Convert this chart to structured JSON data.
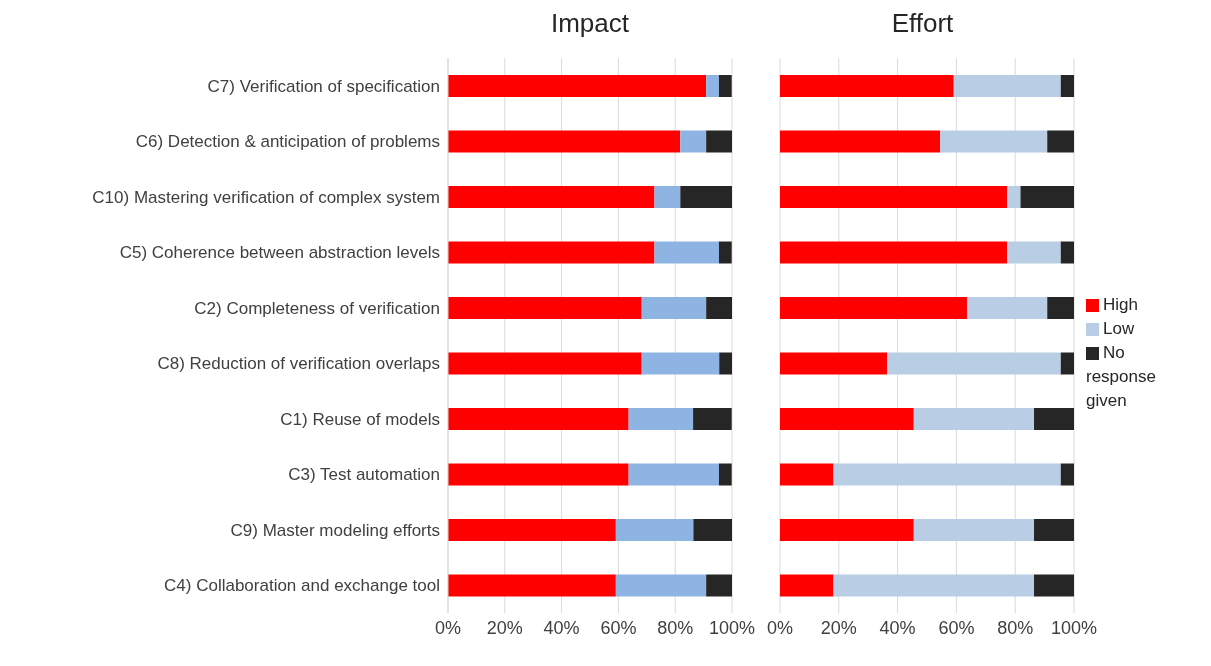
{
  "chart_data": [
    {
      "type": "bar",
      "title": "Impact",
      "orientation": "horizontal",
      "stacked": true,
      "grid": "x",
      "legend": false,
      "categories": [
        "C7) Verification of specification",
        "C6) Detection & anticipation of problems",
        "C10) Mastering verification of complex system",
        "C5) Coherence between abstraction levels",
        "C2) Completeness of verification",
        "C8) Reduction of verification overlaps",
        "C1) Reuse of models",
        "C3) Test automation",
        "C9) Master modeling efforts",
        "C4) Collaboration and exchange tool"
      ],
      "xlim": [
        0,
        100
      ],
      "xticks": [
        {
          "value": 0,
          "label": "0%"
        },
        {
          "value": 20,
          "label": "20%"
        },
        {
          "value": 40,
          "label": "40%"
        },
        {
          "value": 60,
          "label": "60%"
        },
        {
          "value": 80,
          "label": "80%"
        },
        {
          "value": 100,
          "label": "100%"
        }
      ],
      "series": [
        {
          "color": "#ff0000",
          "values": [
            90.9,
            81.8,
            72.7,
            72.7,
            68.2,
            68.2,
            63.6,
            63.6,
            59.1,
            59.1
          ]
        },
        {
          "color": "#8eb4e3",
          "values": [
            4.5,
            9.1,
            9.1,
            22.7,
            22.7,
            27.3,
            22.7,
            31.8,
            27.3,
            31.8
          ]
        },
        {
          "color": "#262626",
          "values": [
            4.5,
            9.1,
            18.2,
            4.5,
            9.1,
            4.5,
            13.6,
            4.5,
            13.6,
            9.1
          ]
        }
      ]
    },
    {
      "type": "bar",
      "title": "Effort",
      "orientation": "horizontal",
      "stacked": true,
      "grid": "x",
      "legend": "right",
      "tick_labels": "x",
      "categories": [
        null,
        null,
        null,
        null,
        null,
        null,
        null,
        null,
        null,
        null
      ],
      "xlim": [
        0,
        100
      ],
      "xticks": [
        {
          "value": 0,
          "label": "0%"
        },
        {
          "value": 20,
          "label": "20%"
        },
        {
          "value": 40,
          "label": "40%"
        },
        {
          "value": 60,
          "label": "60%"
        },
        {
          "value": 80,
          "label": "80%"
        },
        {
          "value": 100,
          "label": "100%"
        }
      ],
      "series": [
        {
          "name": "High",
          "color": "#ff0000",
          "values": [
            59.1,
            54.5,
            77.3,
            77.3,
            63.6,
            36.4,
            45.5,
            18.2,
            45.5,
            18.2
          ]
        },
        {
          "name": "Low",
          "color": "#b9cde5",
          "values": [
            36.4,
            36.4,
            4.5,
            18.2,
            27.3,
            59.1,
            40.9,
            77.3,
            40.9,
            68.2
          ]
        },
        {
          "name": "No response given",
          "color": "#262626",
          "values": [
            4.5,
            9.1,
            18.2,
            4.5,
            9.1,
            4.5,
            13.6,
            4.5,
            13.6,
            13.6
          ]
        }
      ]
    }
  ]
}
